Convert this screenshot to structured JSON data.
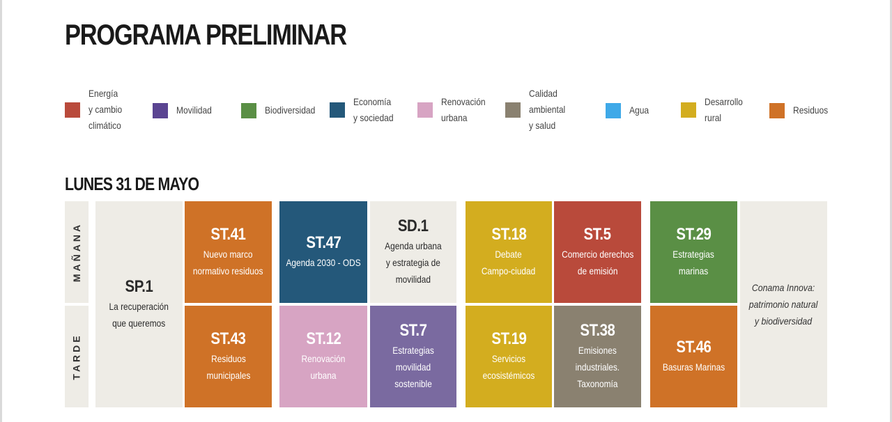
{
  "title": "PROGRAMA PRELIMINAR",
  "legend": [
    {
      "lines": [
        "Energía",
        "y cambio",
        "climático"
      ],
      "color": "#b94a3b"
    },
    {
      "lines": [
        "Movilidad"
      ],
      "color": "#5b4592"
    },
    {
      "lines": [
        "Biodiversidad"
      ],
      "color": "#5a8f45"
    },
    {
      "lines": [
        "Economía",
        "y sociedad"
      ],
      "color": "#24587a"
    },
    {
      "lines": [
        "Renovación",
        "urbana"
      ],
      "color": "#d7a4c3"
    },
    {
      "lines": [
        "Calidad",
        "ambiental",
        "y salud"
      ],
      "color": "#8a8170"
    },
    {
      "lines": [
        "Agua"
      ],
      "color": "#3fa9e8"
    },
    {
      "lines": [
        "Desarrollo",
        "rural"
      ],
      "color": "#d3ad1f"
    },
    {
      "lines": [
        "Residuos"
      ],
      "color": "#cf7227"
    }
  ],
  "day": {
    "title": "LUNES 31 DE MAYO",
    "morning_label": "MAÑANA",
    "afternoon_label": "TARDE"
  },
  "sessions": {
    "sp1": {
      "code": "SP.1",
      "lines": [
        "La recuperación",
        "que queremos"
      ]
    },
    "st41": {
      "code": "ST.41",
      "lines": [
        "Nuevo marco",
        "normativo residuos"
      ],
      "color": "#cf7227"
    },
    "st43": {
      "code": "ST.43",
      "lines": [
        "Residuos",
        "municipales"
      ],
      "color": "#cf7227"
    },
    "st47": {
      "code": "ST.47",
      "lines": [
        "Agenda 2030 - ODS"
      ],
      "color": "#24587a"
    },
    "sd1": {
      "code": "SD.1",
      "lines": [
        "Agenda urbana",
        "y estrategia de",
        "movilidad"
      ]
    },
    "st12": {
      "code": "ST.12",
      "lines": [
        "Renovación",
        "urbana"
      ],
      "color": "#d7a4c3"
    },
    "st7": {
      "code": "ST.7",
      "lines": [
        "Estrategias",
        "movilidad",
        "sostenible"
      ],
      "color": "#7a6aa0"
    },
    "st18": {
      "code": "ST.18",
      "lines": [
        "Debate",
        "Campo-ciudad"
      ],
      "color": "#d3ad1f"
    },
    "st19": {
      "code": "ST.19",
      "lines": [
        "Servicios",
        "ecosistémicos"
      ],
      "color": "#d3ad1f"
    },
    "st5": {
      "code": "ST.5",
      "lines": [
        "Comercio derechos",
        "de emisión"
      ],
      "color": "#b94a3b"
    },
    "st38": {
      "code": "ST.38",
      "lines": [
        "Emisiones",
        "industriales.",
        "Taxonomía"
      ],
      "color": "#8a8170"
    },
    "st29": {
      "code": "ST.29",
      "lines": [
        "Estrategias",
        "marinas"
      ],
      "color": "#5a8f45"
    },
    "st46": {
      "code": "ST.46",
      "lines": [
        "Basuras Marinas"
      ],
      "color": "#cf7227"
    },
    "conama": {
      "lines": [
        "Conama Innova:",
        "patrimonio natural",
        "y biodiversidad"
      ]
    }
  }
}
